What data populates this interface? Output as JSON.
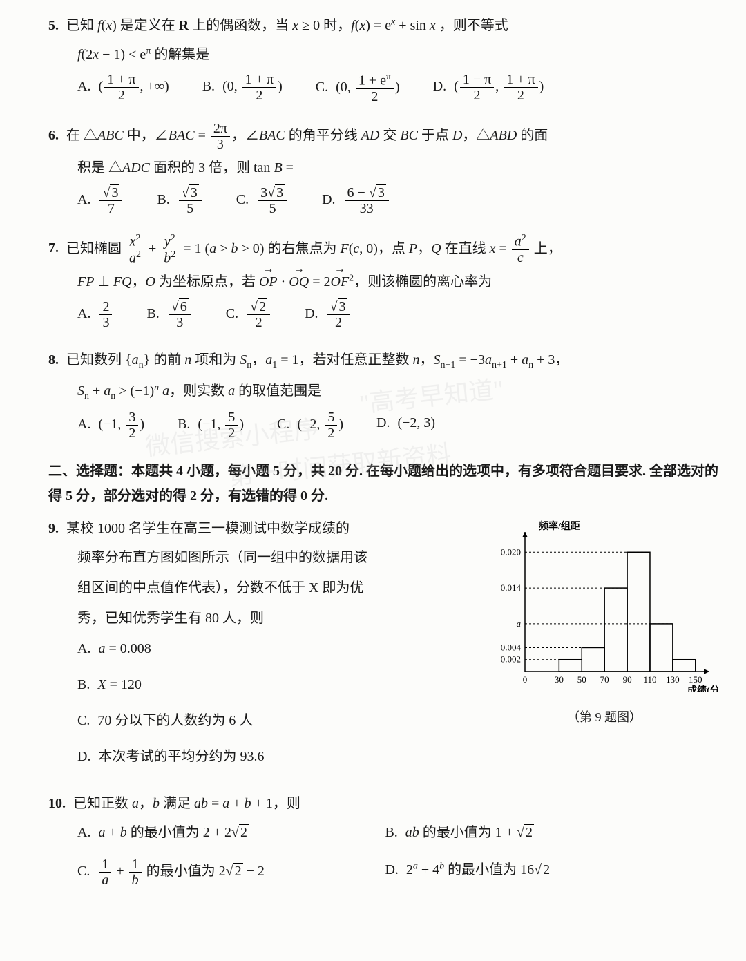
{
  "colors": {
    "text": "#1a1a1a",
    "bg": "#fcfcfa",
    "axis": "#000000",
    "grid_dash": "#000000"
  },
  "typography": {
    "base_fontsize_pt": 15,
    "axis_label_fontsize_pt": 10,
    "family": "SimSun / Times New Roman"
  },
  "q5": {
    "num": "5.",
    "stem1": "已知 f(x) 是定义在 R 上的偶函数，当 x ≥ 0 时，f(x) = eˣ + sin x ，则不等式",
    "stem2": "f(2x − 1) < eπ 的解集是",
    "opts": {
      "A": "( (1+π)/2 , +∞ )",
      "B": "( 0 , (1+π)/2 )",
      "C": "( 0 , (1+eπ)/2 )",
      "D": "( (1−π)/2 , (1+π)/2 )"
    }
  },
  "q6": {
    "num": "6.",
    "stem1": "在 △ABC 中，∠BAC = 2π/3 ，∠BAC 的角平分线 AD 交 BC 于点 D，△ABD 的面",
    "stem2": "积是 △ADC 面积的 3 倍，则 tan B =",
    "opts": {
      "A": "√3 / 7",
      "B": "√3 / 5",
      "C": "3√3 / 5",
      "D": "(6 − √3) / 33"
    }
  },
  "q7": {
    "num": "7.",
    "stem1": "已知椭圆 x²/a² + y²/b² = 1 (a > b > 0) 的右焦点为 F(c, 0)，点 P，Q 在直线 x = a²/c 上，",
    "stem2": "FP ⊥ FQ，O 为坐标原点，若 OP · OQ = 2 OF²，则该椭圆的离心率为",
    "opts": {
      "A": "2/3",
      "B": "√6 / 3",
      "C": "√2 / 2",
      "D": "√3 / 2"
    }
  },
  "q8": {
    "num": "8.",
    "stem1": "已知数列 {aₙ} 的前 n 项和为 Sₙ，a₁ = 1，若对任意正整数 n，Sₙ₊₁ = −3aₙ₊₁ + aₙ + 3，",
    "stem2": "Sₙ + aₙ > (−1)ⁿ a，则实数 a 的取值范围是",
    "opts": {
      "A": "(−1, 3/2)",
      "B": "(−1, 5/2)",
      "C": "(−2, 5/2)",
      "D": "(−2, 3)"
    }
  },
  "section2": "二、选择题：本题共 4 小题，每小题 5 分，共 20 分. 在每小题给出的选项中，有多项符合题目要求. 全部选对的得 5 分，部分选对的得 2 分，有选错的得 0 分.",
  "q9": {
    "num": "9.",
    "stem1": "某校 1000 名学生在高三一模测试中数学成绩的",
    "stem2": "频率分布直方图如图所示（同一组中的数据用该",
    "stem3": "组区间的中点值作代表），分数不低于 X 即为优",
    "stem4": "秀，已知优秀学生有 80 人，则",
    "opts": {
      "A": "a = 0.008",
      "B": "X = 120",
      "C": "70 分以下的人数约为 6 人",
      "D": "本次考试的平均分约为 93.6"
    },
    "caption": "（第 9 题图）",
    "histogram": {
      "type": "histogram",
      "ylabel": "频率/组距",
      "xlabel": "成绩(分)",
      "xticks": [
        0,
        30,
        50,
        70,
        90,
        110,
        130,
        150
      ],
      "yticks_labeled": [
        "0.002",
        "0.004",
        "a",
        "0.014",
        "0.020"
      ],
      "ytick_values": [
        0.002,
        0.004,
        0.008,
        0.014,
        0.02
      ],
      "bars": [
        {
          "from": 30,
          "to": 50,
          "h": 0.002
        },
        {
          "from": 50,
          "to": 70,
          "h": 0.004
        },
        {
          "from": 70,
          "to": 90,
          "h": 0.014
        },
        {
          "from": 90,
          "to": 110,
          "h": 0.02
        },
        {
          "from": 110,
          "to": 130,
          "h": 0.008
        },
        {
          "from": 130,
          "to": 150,
          "h": 0.002
        }
      ],
      "xlim": [
        0,
        155
      ],
      "ylim": [
        0,
        0.022
      ],
      "bar_fill": "none",
      "bar_stroke": "#000000",
      "bar_stroke_width": 1.5,
      "axis_color": "#000000",
      "background_color": "#fcfcfa",
      "dash_pattern": "3 3",
      "arrowheads": true
    }
  },
  "q10": {
    "num": "10.",
    "stem1": "已知正数 a，b 满足 ab = a + b + 1，则",
    "opts": {
      "A": "a + b 的最小值为 2 + 2√2",
      "B": "ab 的最小值为 1 + √2",
      "C": "1/a + 1/b 的最小值为 2√2 − 2",
      "D": "2ᵃ + 4ᵇ 的最小值为 16√2"
    }
  },
  "watermarks": [
    "\"高考早知道\"",
    "微信搜索小程序",
    "第一时间获取新资料"
  ]
}
